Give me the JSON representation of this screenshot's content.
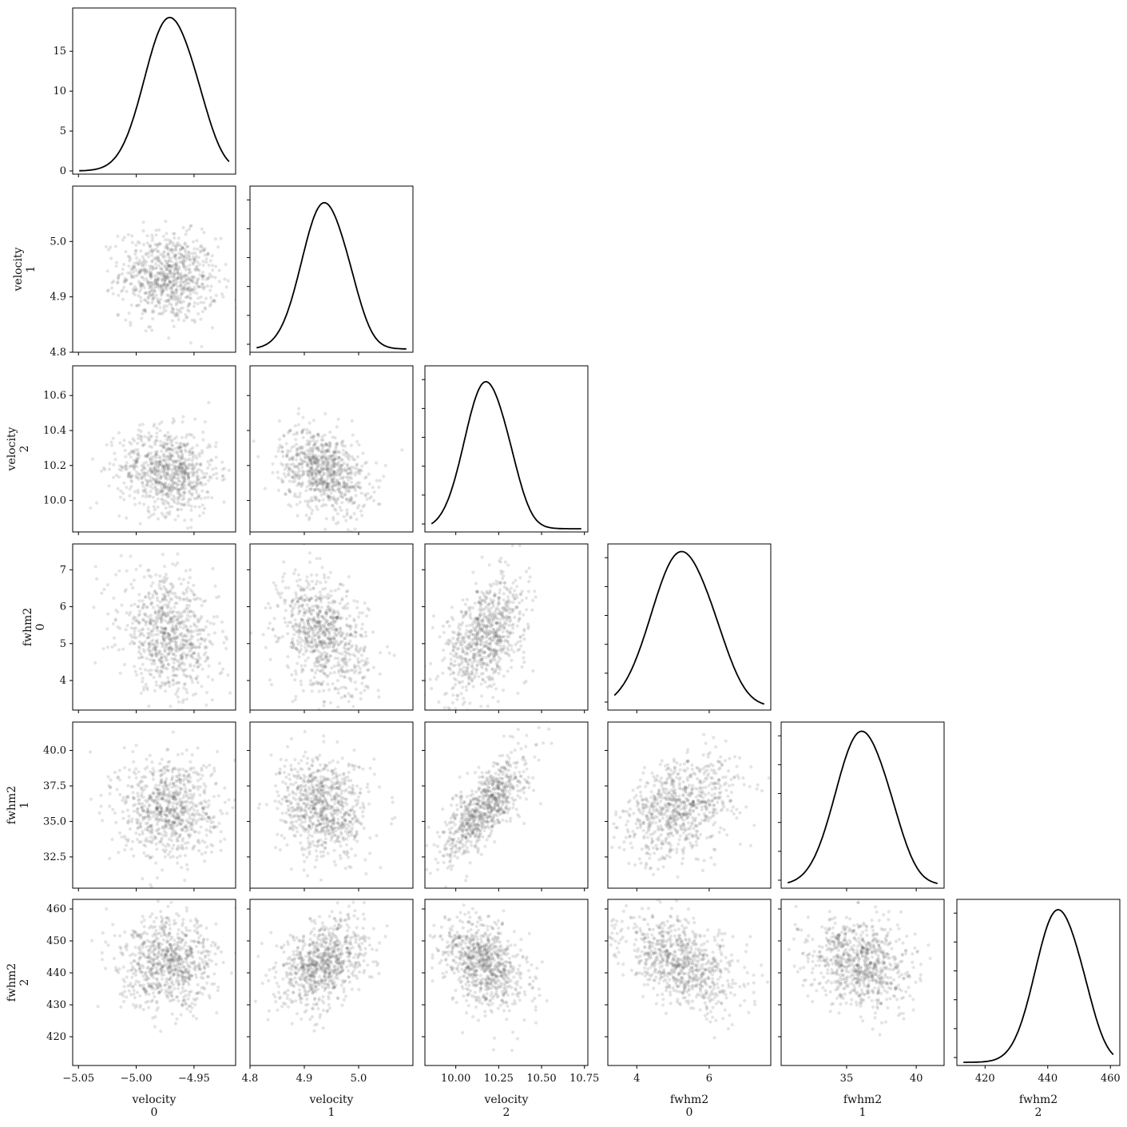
{
  "chart_data": {
    "type": "scatter",
    "title": "",
    "parameters": [
      {
        "name": "velocity",
        "index": "0",
        "range": [
          -5.055,
          -4.914
        ],
        "ticks": [
          -5.05,
          -5.0,
          -4.95
        ],
        "tick_labels": [
          "−5.05",
          "−5.00",
          "−4.95"
        ],
        "mean": -4.972,
        "sd": 0.021,
        "diag_ticks": [
          0,
          5,
          10,
          15
        ],
        "diag_max": 18.9
      },
      {
        "name": "velocity",
        "index": "1",
        "range": [
          4.8,
          5.1
        ],
        "ticks": [
          4.8,
          4.9,
          5.0
        ],
        "tick_labels": [
          "4.8",
          "4.9",
          "5.0"
        ],
        "mean": 4.935,
        "sd": 0.04,
        "diag_max": 10.4
      },
      {
        "name": "velocity",
        "index": "2",
        "range": [
          9.82,
          10.77
        ],
        "ticks": [
          10.0,
          10.25,
          10.5,
          10.75
        ],
        "tick_labels": [
          "10.00",
          "10.25",
          "10.50",
          "10.75"
        ],
        "mean": 10.17,
        "sd": 0.12,
        "diag_max": 3.45
      },
      {
        "name": "fwhm2",
        "index": "0",
        "range": [
          3.2,
          7.7
        ],
        "ticks": [
          4,
          6
        ],
        "tick_labels": [
          "4",
          "6"
        ],
        "mean": 5.2,
        "sd": 0.8,
        "diag_max": 0.49
      },
      {
        "name": "fwhm2",
        "index": "1",
        "range": [
          30.3,
          42.0
        ],
        "ticks": [
          35,
          40
        ],
        "tick_labels": [
          "35",
          "40"
        ],
        "mean": 36.0,
        "sd": 1.8,
        "diag_max": 0.22
      },
      {
        "name": "fwhm2",
        "index": "2",
        "range": [
          411.0,
          463.0
        ],
        "ticks": [
          420,
          440,
          460
        ],
        "tick_labels": [
          "420",
          "440",
          "460"
        ],
        "mean": 443.0,
        "sd": 7.0,
        "diag_max": 0.057
      }
    ],
    "y_ticks": [
      null,
      {
        "ticks": [
          4.8,
          4.9,
          5.0
        ],
        "labels": [
          "4.8",
          "4.9",
          "5.0"
        ]
      },
      {
        "ticks": [
          10.0,
          10.2,
          10.4,
          10.6
        ],
        "labels": [
          "10.0",
          "10.2",
          "10.4",
          "10.6"
        ]
      },
      {
        "ticks": [
          4,
          5,
          6,
          7
        ],
        "labels": [
          "4",
          "5",
          "6",
          "7"
        ]
      },
      {
        "ticks": [
          32.5,
          35.0,
          37.5,
          40.0
        ],
        "labels": [
          "32.5",
          "35.0",
          "37.5",
          "40.0"
        ]
      },
      {
        "ticks": [
          420,
          430,
          440,
          450,
          460
        ],
        "labels": [
          "420",
          "430",
          "440",
          "450",
          "460"
        ]
      }
    ],
    "correlations": [
      [
        1,
        -0.1,
        -0.1,
        -0.25,
        0.0,
        0.0
      ],
      [
        -0.1,
        1,
        -0.3,
        -0.3,
        -0.1,
        0.35
      ],
      [
        -0.1,
        -0.3,
        1,
        0.45,
        0.75,
        -0.35
      ],
      [
        -0.25,
        -0.3,
        0.45,
        1,
        0.35,
        -0.4
      ],
      [
        0.0,
        -0.1,
        0.75,
        0.35,
        1,
        -0.2
      ],
      [
        0.0,
        0.35,
        -0.35,
        -0.4,
        -0.2,
        1
      ]
    ],
    "samples_per_panel": 800,
    "marginal": "kde",
    "grid": false,
    "colors": {
      "scatter": "#555555",
      "kde": "#000000"
    }
  }
}
